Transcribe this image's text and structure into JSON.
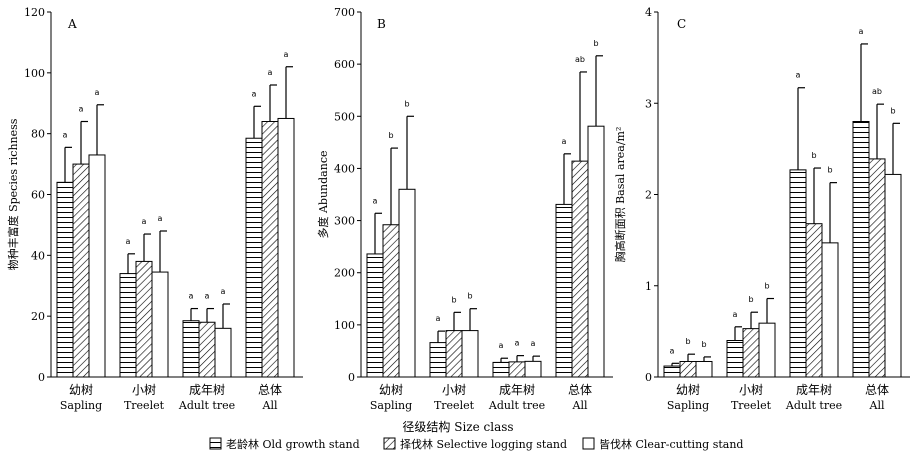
{
  "x_axis_title": "径级结构 Size class",
  "legend": [
    {
      "label": "老龄林 Old growth stand",
      "pattern": "horizontal"
    },
    {
      "label": "择伐林 Selective logging stand",
      "pattern": "diagonal"
    },
    {
      "label": "皆伐林 Clear-cutting stand",
      "pattern": "empty"
    }
  ],
  "colors": {
    "stroke": "#000000",
    "fill": "#ffffff"
  },
  "chart_data": [
    {
      "type": "bar",
      "panel": "A",
      "ylabel": "物种丰富度 Species richness",
      "ylim": [
        0,
        120
      ],
      "yticks": [
        "0",
        "20",
        "40",
        "60",
        "80",
        "100",
        "120"
      ],
      "categories": [
        {
          "cn": "幼树",
          "en": "Sapling"
        },
        {
          "cn": "小树",
          "en": "Treelet"
        },
        {
          "cn": "成年树",
          "en": "Adult tree"
        },
        {
          "cn": "总体",
          "en": "All"
        }
      ],
      "series": [
        {
          "name": "老龄林 Old growth stand",
          "values": [
            64,
            34,
            18.5,
            78.5
          ],
          "errors": [
            11.5,
            6.5,
            4,
            10.5
          ],
          "sig": [
            "a",
            "a",
            "a",
            "a"
          ]
        },
        {
          "name": "择伐林 Selective logging stand",
          "values": [
            70,
            38,
            18,
            84
          ],
          "errors": [
            14,
            9,
            4.5,
            12
          ],
          "sig": [
            "a",
            "a",
            "a",
            "a"
          ]
        },
        {
          "name": "皆伐林 Clear-cutting stand",
          "values": [
            73,
            34.5,
            16,
            85
          ],
          "errors": [
            16.5,
            13.5,
            8,
            17
          ],
          "sig": [
            "a",
            "a",
            "a",
            "a"
          ]
        }
      ]
    },
    {
      "type": "bar",
      "panel": "B",
      "ylabel": "多度 Abundance",
      "ylim": [
        0,
        700
      ],
      "yticks": [
        "0",
        "100",
        "200",
        "300",
        "400",
        "500",
        "600",
        "700"
      ],
      "categories": [
        {
          "cn": "幼树",
          "en": "Sapling"
        },
        {
          "cn": "小树",
          "en": "Treelet"
        },
        {
          "cn": "成年树",
          "en": "Adult tree"
        },
        {
          "cn": "总体",
          "en": "All"
        }
      ],
      "series": [
        {
          "name": "老龄林 Old growth stand",
          "values": [
            236,
            66,
            28,
            331
          ],
          "errors": [
            78,
            22,
            8,
            97
          ],
          "sig": [
            "a",
            "a",
            "a",
            "a"
          ]
        },
        {
          "name": "择伐林 Selective logging stand",
          "values": [
            292,
            89,
            29,
            414
          ],
          "errors": [
            147,
            35,
            12,
            171
          ],
          "sig": [
            "b",
            "b",
            "a",
            "ab"
          ]
        },
        {
          "name": "皆伐林 Clear-cutting stand",
          "values": [
            360,
            89,
            30,
            481
          ],
          "errors": [
            140,
            42,
            10,
            135
          ],
          "sig": [
            "b",
            "b",
            "a",
            "b"
          ]
        }
      ]
    },
    {
      "type": "bar",
      "panel": "C",
      "ylabel": "胸高断面积 Basal area/m²",
      "ylim": [
        0,
        4
      ],
      "yticks": [
        "0",
        "1",
        "2",
        "3",
        "4"
      ],
      "categories": [
        {
          "cn": "幼树",
          "en": "Sapling"
        },
        {
          "cn": "小树",
          "en": "Treelet"
        },
        {
          "cn": "成年树",
          "en": "Adult tree"
        },
        {
          "cn": "总体",
          "en": "All"
        }
      ],
      "series": [
        {
          "name": "老龄林 Old growth stand",
          "values": [
            0.12,
            0.4,
            2.27,
            2.8
          ],
          "errors": [
            0.03,
            0.15,
            0.9,
            0.85
          ],
          "sig": [
            "a",
            "a",
            "a",
            "a"
          ]
        },
        {
          "name": "择伐林 Selective logging stand",
          "values": [
            0.17,
            0.53,
            1.68,
            2.39
          ],
          "errors": [
            0.08,
            0.18,
            0.61,
            0.6
          ],
          "sig": [
            "b",
            "b",
            "b",
            "ab"
          ]
        },
        {
          "name": "皆伐林 Clear-cutting stand",
          "values": [
            0.17,
            0.59,
            1.47,
            2.22
          ],
          "errors": [
            0.05,
            0.27,
            0.66,
            0.56
          ],
          "sig": [
            "b",
            "b",
            "b",
            "b"
          ]
        }
      ]
    }
  ]
}
